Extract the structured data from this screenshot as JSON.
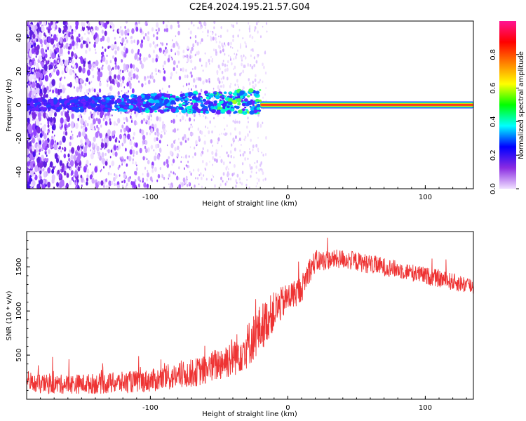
{
  "title": "C2E4.2024.195.21.57.G04",
  "chart_data": [
    {
      "type": "heatmap",
      "name": "spectrogram",
      "xlabel": "Height of straight line (km)",
      "ylabel": "Frequency (Hz)",
      "xlim": [
        -190,
        135
      ],
      "ylim": [
        -50,
        50
      ],
      "xticks": [
        -100,
        0,
        100
      ],
      "yticks": [
        -40,
        -20,
        0,
        20,
        40
      ],
      "colorbar": {
        "label": "Normalized spectral amplitude",
        "range": [
          0,
          1
        ],
        "ticks": [
          "0.0",
          "0.2",
          "0.4",
          "0.6",
          "0.8"
        ],
        "colors": [
          "#f0e0ff",
          "#8a2be2",
          "#0000ff",
          "#00ffff",
          "#00ff00",
          "#ffff00",
          "#ff8000",
          "#ff0000",
          "#ff1493"
        ]
      },
      "features": {
        "tone_start_km": -20,
        "tone_freq_hz": 0,
        "noise_band_end_km": -20,
        "scatter_end_km": -95
      }
    },
    {
      "type": "line",
      "name": "snr",
      "xlabel": "Height of straight line (km)",
      "ylabel": "SNR (10 * v/v)",
      "xlim": [
        -190,
        135
      ],
      "ylim": [
        0,
        1900
      ],
      "xticks": [
        -100,
        0,
        100
      ],
      "yticks": [
        500,
        1000,
        1500
      ],
      "color": "#ee3333",
      "trend": {
        "x": [
          -190,
          -160,
          -130,
          -100,
          -80,
          -60,
          -40,
          -30,
          -20,
          -10,
          0,
          10,
          15,
          20,
          30,
          40,
          60,
          80,
          100,
          120,
          135
        ],
        "y": [
          170,
          170,
          180,
          210,
          260,
          330,
          480,
          600,
          800,
          1000,
          1150,
          1250,
          1450,
          1560,
          1580,
          1590,
          1530,
          1470,
          1400,
          1330,
          1280
        ]
      },
      "noise_amplitude": [
        110,
        110,
        120,
        130,
        150,
        170,
        230,
        260,
        280,
        220,
        170,
        150,
        150,
        130,
        110,
        110,
        110,
        100,
        100,
        100,
        100
      ]
    }
  ]
}
